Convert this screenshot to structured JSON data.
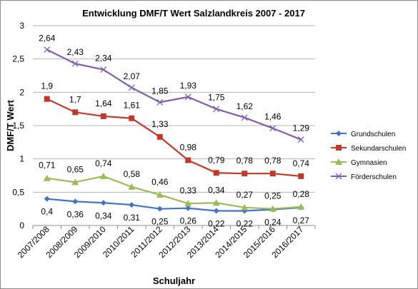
{
  "chart_data": {
    "type": "line",
    "title": "Entwicklung DMF/T Wert Salzlandkreis 2007  - 2017",
    "xlabel": "Schuljahr",
    "ylabel": "DMF/T Wert",
    "ylim": [
      0,
      3
    ],
    "yticks": [
      "0",
      "0,5",
      "1",
      "1,5",
      "2",
      "2,5",
      "3"
    ],
    "yticks_values": [
      0,
      0.5,
      1,
      1.5,
      2,
      2.5,
      3
    ],
    "grid": true,
    "legend_position": "right",
    "categories": [
      "2007/2008",
      "2008/2009",
      "2009/2010",
      "2010/2011",
      "2011/2012",
      "2012/2013",
      "2013/2014",
      "2014/2015",
      "2015/2016",
      "2016/2017"
    ],
    "series": [
      {
        "name": "Grundschulen",
        "color": "#4472C4",
        "marker": "diamond",
        "values": [
          0.4,
          0.36,
          0.34,
          0.31,
          0.25,
          0.26,
          0.22,
          0.22,
          0.24,
          0.27
        ],
        "labels": [
          "0,4",
          "0,36",
          "0,34",
          "0,31",
          "0,25",
          "0,26",
          "0,22",
          "0,22",
          "0,24",
          "0,27"
        ]
      },
      {
        "name": "Sekundarschulen",
        "color": "#C0392B",
        "marker": "square",
        "values": [
          1.9,
          1.7,
          1.64,
          1.61,
          1.33,
          0.98,
          0.79,
          0.78,
          0.78,
          0.74
        ],
        "labels": [
          "1,9",
          "1,7",
          "1,64",
          "1,61",
          "1,33",
          "0,98",
          "0,79",
          "0,78",
          "0,78",
          "0,74"
        ]
      },
      {
        "name": "Gymnasien",
        "color": "#9BBB59",
        "marker": "triangle",
        "values": [
          0.71,
          0.65,
          0.74,
          0.58,
          0.46,
          0.33,
          0.34,
          0.27,
          0.25,
          0.28
        ],
        "labels": [
          "0,71",
          "0,65",
          "0,74",
          "0,58",
          "0,46",
          "0,33",
          "0,34",
          "0,27",
          "0,25",
          "0,28"
        ]
      },
      {
        "name": "Förderschulen",
        "color": "#7E5EA8",
        "marker": "x",
        "values": [
          2.64,
          2.43,
          2.34,
          2.07,
          1.85,
          1.93,
          1.75,
          1.62,
          1.46,
          1.29
        ],
        "labels": [
          "2,64",
          "2,43",
          "2,34",
          "2,07",
          "1,85",
          "1,93",
          "1,75",
          "1,62",
          "1,46",
          "1,29"
        ]
      }
    ]
  }
}
